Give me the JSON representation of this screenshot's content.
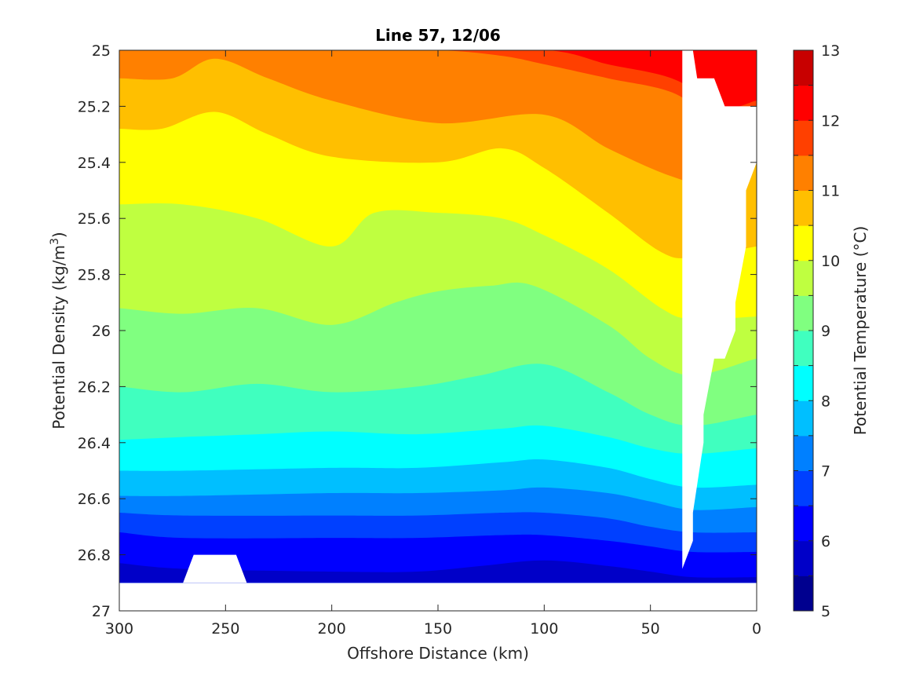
{
  "chart_data": {
    "type": "heatmap",
    "subtype": "filled-contour",
    "title": "Line 57, 12/06",
    "xlabel": "Offshore Distance (km)",
    "ylabel_main": "Potential Density (kg/m",
    "ylabel_sup": "3",
    "ylabel_end": ")",
    "colorbar_label": "Potential Temperature (°C)",
    "x_axis": {
      "range": [
        300,
        0
      ],
      "reversed": true,
      "ticks": [
        300,
        250,
        200,
        150,
        100,
        50,
        0
      ],
      "tick_labels": [
        "300",
        "250",
        "200",
        "150",
        "100",
        "50",
        "0"
      ]
    },
    "y_axis": {
      "range": [
        25,
        27
      ],
      "reversed": true,
      "ticks": [
        25,
        25.2,
        25.4,
        25.6,
        25.8,
        26,
        26.2,
        26.4,
        26.6,
        26.8,
        27
      ],
      "tick_labels": [
        "25",
        "25.2",
        "25.4",
        "25.6",
        "25.8",
        "26",
        "26.2",
        "26.4",
        "26.6",
        "26.8",
        "27"
      ]
    },
    "colorbar": {
      "range": [
        5,
        13
      ],
      "tick_labels": [
        "13",
        "12",
        "11",
        "10",
        "9",
        "8",
        "7",
        "6",
        "5"
      ],
      "levels": [
        5,
        5.5,
        6,
        6.5,
        7,
        7.5,
        8,
        8.5,
        9,
        9.5,
        10,
        10.5,
        11,
        11.5,
        12,
        12.5,
        13
      ],
      "colors": [
        "#00008f",
        "#0000c8",
        "#0000ff",
        "#0040ff",
        "#0080ff",
        "#00bfff",
        "#00ffff",
        "#40ffbf",
        "#80ff80",
        "#bfff40",
        "#ffff00",
        "#ffbf00",
        "#ff8000",
        "#ff4000",
        "#ff0000",
        "#c80000"
      ]
    },
    "contour_levels": [
      {
        "level": 12.5,
        "color": "#ff0000",
        "x": [
          300,
          98,
          0
        ],
        "y": [
          25.0,
          25.0,
          25.0
        ]
      },
      {
        "level": 12,
        "color": "#ff4000",
        "x": [
          300,
          260,
          200,
          150,
          98,
          70,
          40,
          15,
          0
        ],
        "y": [
          25.0,
          25.0,
          25.0,
          25.0,
          25.0,
          25.05,
          25.1,
          25.2,
          25.18
        ]
      },
      {
        "level": 11.5,
        "color": "#ff8000",
        "x": [
          300,
          260,
          200,
          150,
          120,
          100,
          70,
          40,
          20,
          0
        ],
        "y": [
          25.0,
          25.0,
          25.0,
          25.0,
          25.02,
          25.05,
          25.1,
          25.15,
          25.25,
          25.32
        ]
      },
      {
        "level": 11,
        "color": "#ffbf00",
        "x": [
          300,
          275,
          255,
          230,
          200,
          150,
          100,
          70,
          40,
          20,
          0
        ],
        "y": [
          25.1,
          25.1,
          25.03,
          25.1,
          25.18,
          25.26,
          25.23,
          25.35,
          25.45,
          25.48,
          25.4
        ]
      },
      {
        "level": 10.5,
        "color": "#ffff00",
        "x": [
          300,
          280,
          255,
          230,
          200,
          150,
          120,
          100,
          70,
          45,
          30,
          0
        ],
        "y": [
          25.28,
          25.28,
          25.22,
          25.3,
          25.38,
          25.4,
          25.35,
          25.42,
          25.58,
          25.72,
          25.74,
          25.7
        ]
      },
      {
        "level": 10,
        "color": "#bfff40",
        "x": [
          300,
          270,
          235,
          200,
          180,
          150,
          120,
          100,
          70,
          45,
          30,
          0
        ],
        "y": [
          25.55,
          25.55,
          25.6,
          25.7,
          25.58,
          25.58,
          25.6,
          25.66,
          25.78,
          25.92,
          25.96,
          25.95
        ]
      },
      {
        "level": 9.5,
        "color": "#80ff80",
        "x": [
          300,
          270,
          235,
          200,
          170,
          150,
          125,
          105,
          70,
          50,
          30,
          0
        ],
        "y": [
          25.92,
          25.94,
          25.92,
          25.98,
          25.9,
          25.86,
          25.84,
          25.84,
          25.98,
          26.1,
          26.16,
          26.1
        ]
      },
      {
        "level": 9,
        "color": "#40ffbf",
        "x": [
          300,
          270,
          235,
          200,
          160,
          130,
          100,
          70,
          50,
          30,
          0
        ],
        "y": [
          26.2,
          26.22,
          26.19,
          26.22,
          26.2,
          26.16,
          26.12,
          26.22,
          26.3,
          26.34,
          26.3
        ]
      },
      {
        "level": 8.5,
        "color": "#00ffff",
        "x": [
          300,
          270,
          235,
          200,
          160,
          120,
          100,
          70,
          50,
          30,
          0
        ],
        "y": [
          26.39,
          26.38,
          26.37,
          26.36,
          26.37,
          26.35,
          26.34,
          26.38,
          26.42,
          26.44,
          26.42
        ]
      },
      {
        "level": 8,
        "color": "#00bfff",
        "x": [
          300,
          270,
          200,
          160,
          120,
          100,
          70,
          50,
          30,
          0
        ],
        "y": [
          26.5,
          26.5,
          26.49,
          26.49,
          26.47,
          26.46,
          26.49,
          26.53,
          26.56,
          26.55
        ]
      },
      {
        "level": 7.5,
        "color": "#0080ff",
        "x": [
          300,
          270,
          200,
          160,
          120,
          100,
          70,
          50,
          30,
          0
        ],
        "y": [
          26.59,
          26.59,
          26.58,
          26.58,
          26.57,
          26.56,
          26.58,
          26.61,
          26.64,
          26.63
        ]
      },
      {
        "level": 7,
        "color": "#0040ff",
        "x": [
          300,
          270,
          200,
          160,
          120,
          100,
          70,
          50,
          30,
          0
        ],
        "y": [
          26.65,
          26.66,
          26.66,
          26.66,
          26.65,
          26.65,
          26.67,
          26.7,
          26.72,
          26.72
        ]
      },
      {
        "level": 6.5,
        "color": "#0000ff",
        "x": [
          300,
          270,
          200,
          160,
          120,
          100,
          70,
          50,
          30,
          0
        ],
        "y": [
          26.72,
          26.74,
          26.74,
          26.74,
          26.73,
          26.73,
          26.75,
          26.77,
          26.79,
          26.79
        ]
      },
      {
        "level": 6,
        "color": "#0000c8",
        "x": [
          300,
          270,
          200,
          160,
          130,
          100,
          70,
          50,
          30,
          0
        ],
        "y": [
          26.83,
          26.85,
          26.86,
          26.86,
          26.84,
          26.82,
          26.84,
          26.86,
          26.88,
          26.88
        ]
      }
    ],
    "data_extent_x": [
      300,
      35
    ],
    "data_extent_y": [
      25,
      26.9
    ],
    "masked_regions": [
      {
        "x": [
          35,
          35,
          30,
          30,
          25,
          25,
          20,
          15,
          10,
          10,
          5,
          5,
          0,
          0,
          15,
          20,
          28,
          30,
          35
        ],
        "y": [
          27,
          26.85,
          26.75,
          26.65,
          26.4,
          26.3,
          26.1,
          26.1,
          26.0,
          25.9,
          25.7,
          25.5,
          25.4,
          25.2,
          25.2,
          25.1,
          25.1,
          25.0,
          25.0
        ]
      },
      {
        "x": [
          270,
          265,
          245,
          240
        ],
        "y": [
          26.9,
          26.8,
          26.8,
          26.9
        ]
      }
    ],
    "grid": false,
    "legend": "colorbar-right"
  }
}
